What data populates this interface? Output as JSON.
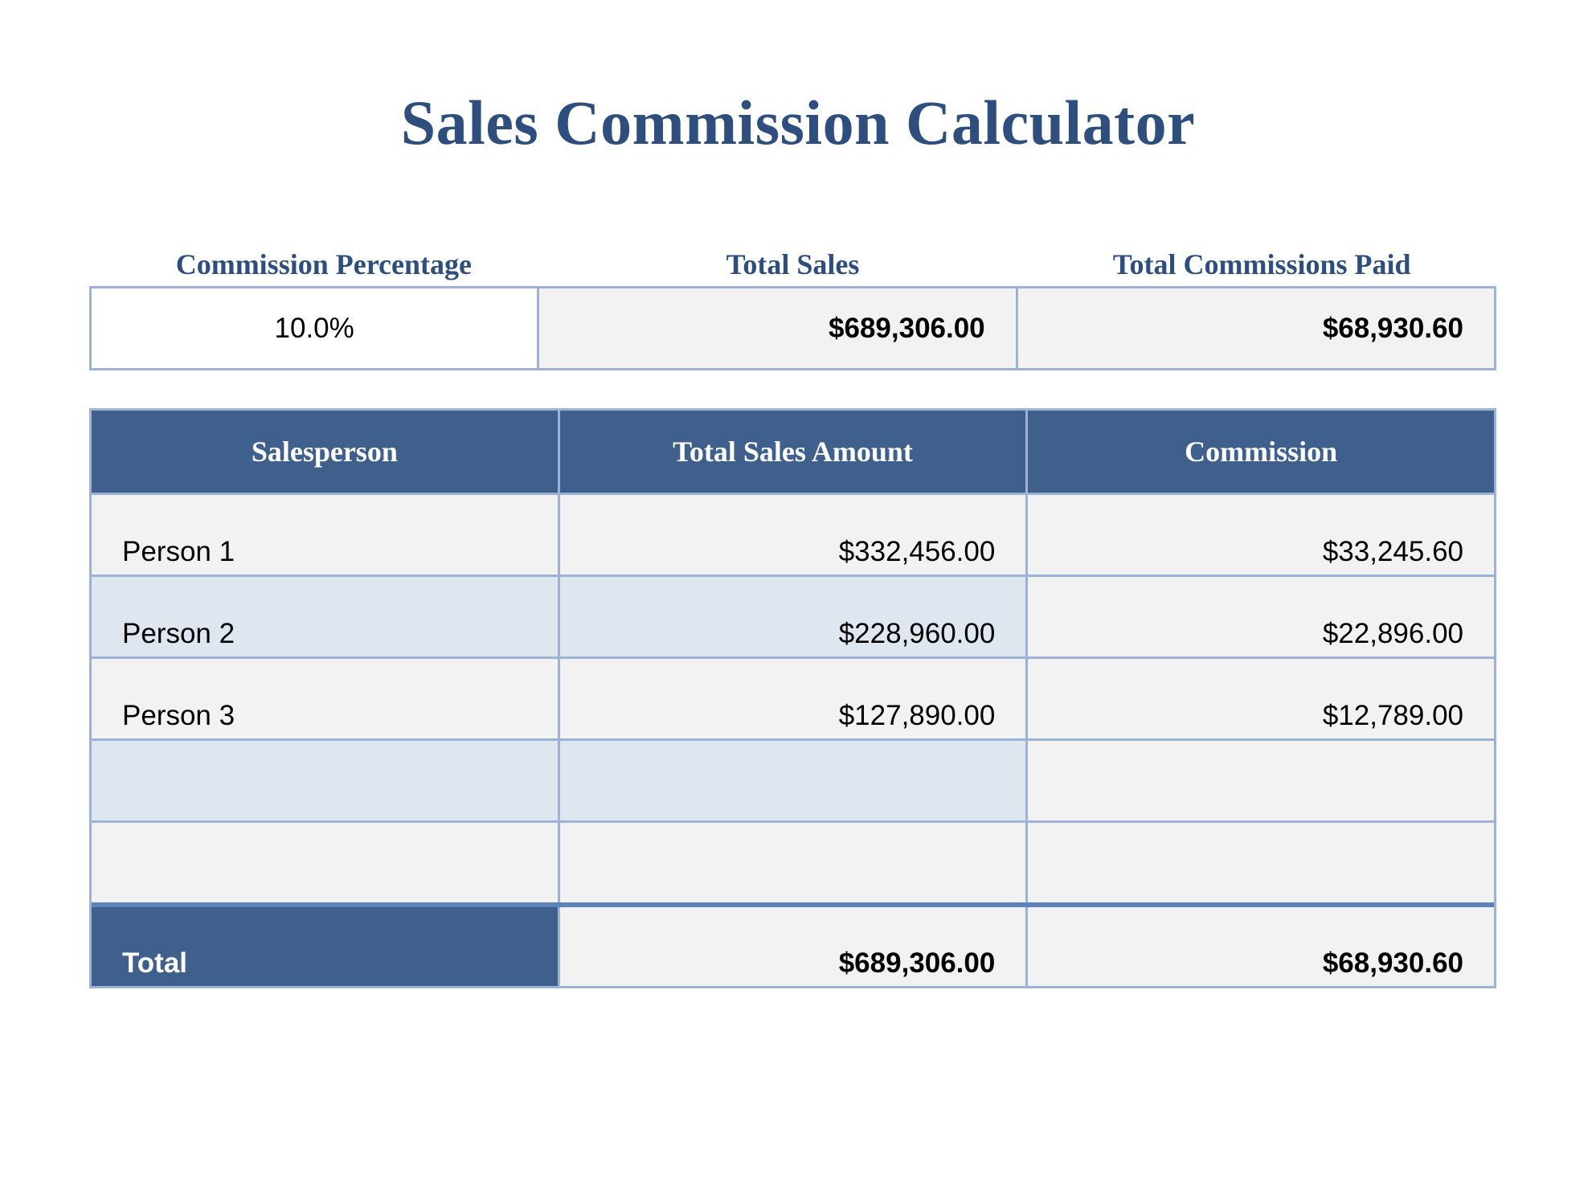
{
  "title": "Sales Commission Calculator",
  "summary": {
    "labels": {
      "commission_percentage": "Commission Percentage",
      "total_sales": "Total Sales",
      "total_commissions_paid": "Total Commissions Paid"
    },
    "values": {
      "commission_percentage": "10.0%",
      "total_sales": "$689,306.00",
      "total_commissions_paid": "$68,930.60"
    }
  },
  "table": {
    "headers": [
      "Salesperson",
      "Total Sales Amount",
      "Commission"
    ],
    "rows": [
      {
        "salesperson": "Person 1",
        "total_sales_amount": "$332,456.00",
        "commission": "$33,245.60"
      },
      {
        "salesperson": "Person 2",
        "total_sales_amount": "$228,960.00",
        "commission": "$22,896.00"
      },
      {
        "salesperson": "Person 3",
        "total_sales_amount": "$127,890.00",
        "commission": "$12,789.00"
      },
      {
        "salesperson": "",
        "total_sales_amount": "",
        "commission": ""
      },
      {
        "salesperson": "",
        "total_sales_amount": "",
        "commission": ""
      }
    ],
    "total": {
      "label": "Total",
      "total_sales_amount": "$689,306.00",
      "commission": "$68,930.60"
    }
  },
  "colors": {
    "title": "#2e4e7e",
    "header_bg": "#3f5f8c",
    "border": "#9db3d6",
    "total_separator": "#5b82b9",
    "row_gray": "#f2f2f2",
    "row_blue": "#dee6f0"
  }
}
